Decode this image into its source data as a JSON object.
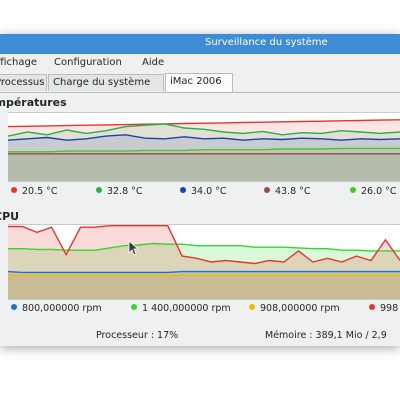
{
  "window": {
    "title": "Surveillance du système"
  },
  "menu": [
    "Affichage",
    "Configuration",
    "Aide"
  ],
  "tabs": [
    {
      "label": "Processus",
      "active": false
    },
    {
      "label": "Charge du système",
      "active": false
    },
    {
      "label": "iMac 2006",
      "active": true
    }
  ],
  "temperatures": {
    "title": "Températures",
    "legend": [
      {
        "label": "20.5 °C",
        "color": "#e8352b"
      },
      {
        "label": "32.8 °C",
        "color": "#22b14c"
      },
      {
        "label": "34.0 °C",
        "color": "#1d3fb5"
      },
      {
        "label": "43.8 °C",
        "color": "#a04848"
      },
      {
        "label": "26.0 °C",
        "color": "#4cc330"
      }
    ]
  },
  "cpu": {
    "title": "CPU",
    "legend": [
      {
        "label": "800,000000 rpm",
        "color": "#1f6fd1"
      },
      {
        "label": "1 400,000000 rpm",
        "color": "#33d633"
      },
      {
        "label": "908,000000 rpm",
        "color": "#f5b800"
      },
      {
        "label": "998",
        "color": "#e8352b"
      }
    ]
  },
  "status": {
    "processor": "Processeur : 17%",
    "memory": "Mémoire : 389,1 Mio / 2,9"
  },
  "chart_data": [
    {
      "type": "line",
      "title": "Températures",
      "series": [
        {
          "name": "20.5 °C",
          "color": "#e8352b",
          "values": [
            80,
            80.5,
            81,
            81.5,
            82,
            82.5,
            83,
            83.5,
            84,
            84.5,
            85,
            85.5,
            86,
            86.5,
            87,
            87.5,
            88,
            88.5,
            89,
            89.5,
            90
          ]
        },
        {
          "name": "32.8 °C",
          "color": "#22b14c",
          "values": [
            66,
            72,
            68,
            75,
            70,
            74,
            80,
            82,
            84,
            78,
            76,
            72,
            70,
            73,
            68,
            71,
            70,
            74,
            72,
            70,
            72
          ]
        },
        {
          "name": "34.0 °C",
          "color": "#1d3fb5",
          "values": [
            60,
            62,
            64,
            60,
            62,
            66,
            68,
            63,
            62,
            65,
            62,
            63,
            60,
            62,
            61,
            63,
            62,
            60,
            62,
            61,
            62
          ]
        },
        {
          "name": "43.8 °C",
          "color": "#a04848",
          "values": [
            40,
            40,
            40,
            40,
            40,
            40,
            40,
            40,
            40,
            40,
            40,
            40,
            40,
            40,
            40,
            40,
            40,
            40,
            40,
            40,
            40
          ]
        },
        {
          "name": "26.0 °C",
          "color": "#4cc330",
          "values": [
            43,
            43,
            43,
            44,
            44,
            44,
            44,
            45,
            45,
            45,
            46,
            46,
            46,
            46,
            47,
            47,
            47,
            48,
            48,
            48,
            48
          ]
        }
      ],
      "ylim": [
        0,
        100
      ]
    },
    {
      "type": "area",
      "title": "CPU",
      "series": [
        {
          "name": "800,000000 rpm",
          "color": "#1f6fd1",
          "values": [
            37,
            36,
            36,
            36,
            36,
            36,
            36,
            36,
            36,
            36,
            36,
            36,
            37,
            37,
            37,
            37,
            37,
            37,
            37,
            37,
            37,
            37,
            37,
            37,
            37,
            37,
            37,
            37
          ]
        },
        {
          "name": "1 400,000000 rpm",
          "color": "#33d633",
          "values": [
            68,
            68,
            67,
            67,
            66,
            66,
            66,
            69,
            72,
            73,
            75,
            74,
            74,
            72,
            72,
            72,
            72,
            70,
            70,
            70,
            69,
            68,
            68,
            66,
            66,
            65,
            65,
            65
          ]
        },
        {
          "name": "908,000000 rpm",
          "color": "#f5b800",
          "values": [
            32,
            32,
            32,
            32,
            32,
            32,
            32,
            32,
            32,
            32,
            32,
            32,
            32,
            32,
            32,
            32,
            32,
            32,
            32,
            32,
            32,
            32,
            32,
            32,
            32,
            32,
            32,
            32
          ]
        },
        {
          "name": "998",
          "color": "#e8352b",
          "values": [
            98,
            98,
            90,
            97,
            60,
            97,
            97,
            99,
            99,
            99,
            99,
            99,
            58,
            55,
            50,
            52,
            50,
            48,
            52,
            50,
            65,
            50,
            55,
            50,
            58,
            52,
            80,
            52
          ]
        }
      ],
      "ylim": [
        0,
        100
      ]
    }
  ]
}
